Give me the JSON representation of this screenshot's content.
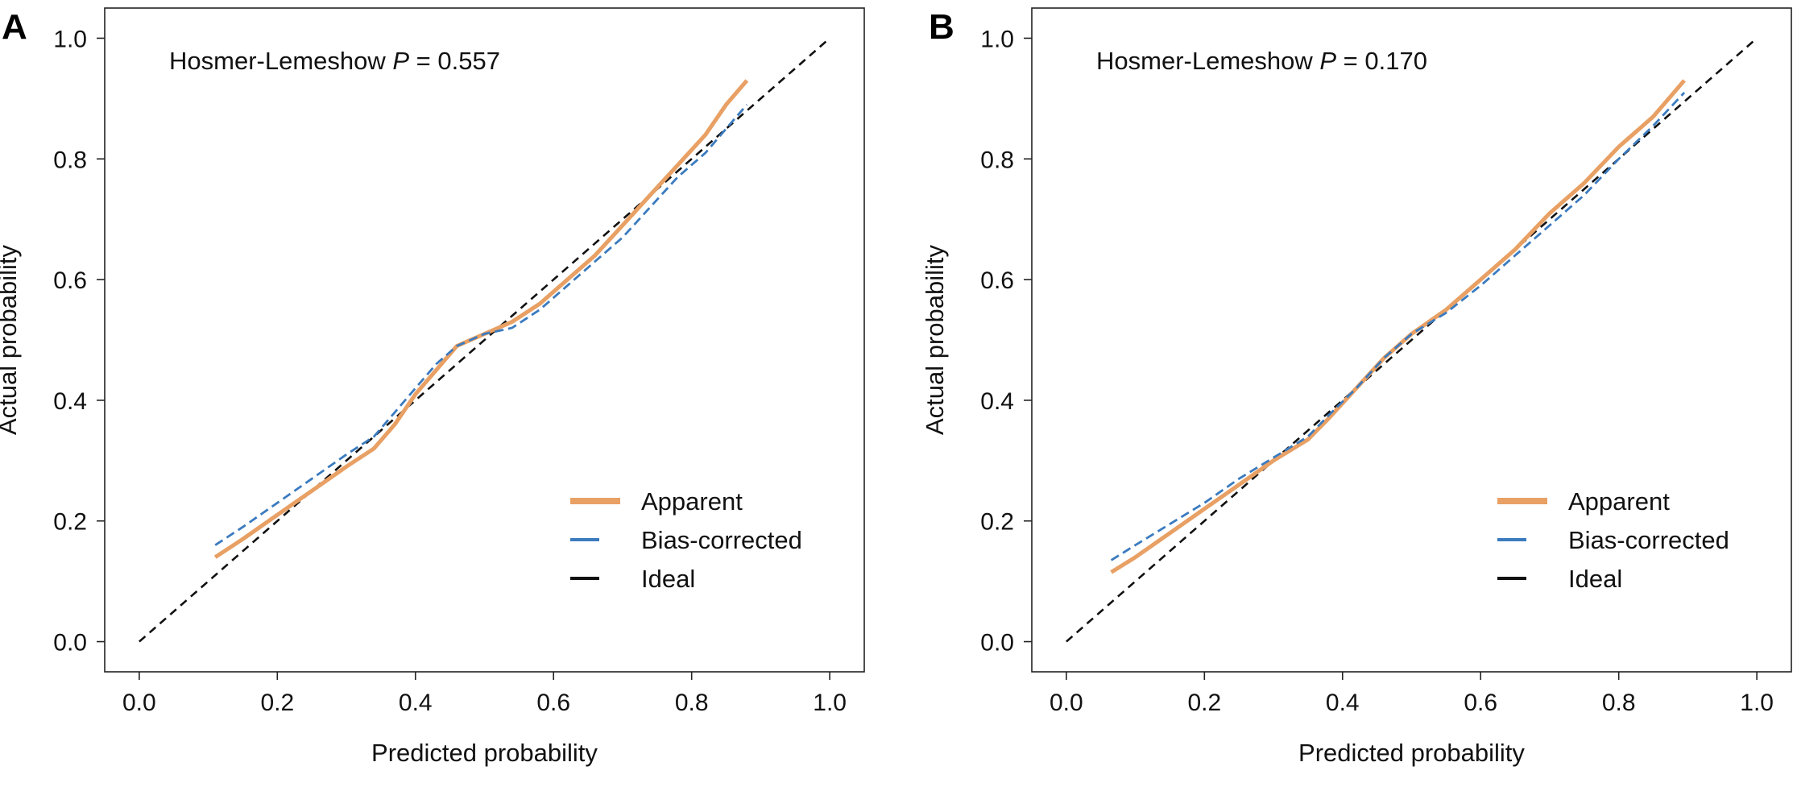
{
  "chart_data": [
    {
      "type": "line",
      "panel_label": "A",
      "annotation": {
        "prefix": "Hosmer-Lemeshow ",
        "italic": "P",
        "suffix": " = 0.557"
      },
      "xlabel": "Predicted probability",
      "ylabel": "Actual probability",
      "xlim": [
        -0.05,
        1.05
      ],
      "ylim": [
        -0.05,
        1.05
      ],
      "xticks": [
        "0.0",
        "0.2",
        "0.4",
        "0.6",
        "0.8",
        "1.0"
      ],
      "yticks": [
        "0.0",
        "0.2",
        "0.4",
        "0.6",
        "0.8",
        "1.0"
      ],
      "grid": false,
      "legend_position": "bottom-right",
      "series": [
        {
          "name": "Apparent",
          "color": "#E8A064",
          "style": "solid",
          "x": [
            0.11,
            0.15,
            0.2,
            0.25,
            0.3,
            0.34,
            0.37,
            0.4,
            0.43,
            0.46,
            0.5,
            0.54,
            0.58,
            0.62,
            0.66,
            0.7,
            0.74,
            0.78,
            0.82,
            0.85,
            0.88
          ],
          "y": [
            0.14,
            0.17,
            0.21,
            0.25,
            0.29,
            0.32,
            0.36,
            0.41,
            0.45,
            0.49,
            0.51,
            0.53,
            0.56,
            0.6,
            0.64,
            0.69,
            0.74,
            0.79,
            0.84,
            0.89,
            0.93
          ]
        },
        {
          "name": "Bias-corrected",
          "color": "#3B7BBF",
          "style": "dashed",
          "x": [
            0.11,
            0.15,
            0.2,
            0.25,
            0.3,
            0.34,
            0.37,
            0.4,
            0.43,
            0.46,
            0.5,
            0.54,
            0.58,
            0.62,
            0.66,
            0.7,
            0.74,
            0.78,
            0.82,
            0.85,
            0.88
          ],
          "y": [
            0.16,
            0.19,
            0.23,
            0.27,
            0.31,
            0.34,
            0.38,
            0.42,
            0.46,
            0.49,
            0.51,
            0.52,
            0.55,
            0.59,
            0.63,
            0.67,
            0.72,
            0.77,
            0.81,
            0.85,
            0.89
          ]
        },
        {
          "name": "Ideal",
          "color": "#111111",
          "style": "dashed",
          "x": [
            0,
            1
          ],
          "y": [
            0,
            1
          ]
        }
      ]
    },
    {
      "type": "line",
      "panel_label": "B",
      "annotation": {
        "prefix": "Hosmer-Lemeshow ",
        "italic": "P",
        "suffix": " = 0.170"
      },
      "xlabel": "Predicted probability",
      "ylabel": "Actual probability",
      "xlim": [
        -0.05,
        1.05
      ],
      "ylim": [
        -0.05,
        1.05
      ],
      "xticks": [
        "0.0",
        "0.2",
        "0.4",
        "0.6",
        "0.8",
        "1.0"
      ],
      "yticks": [
        "0.0",
        "0.2",
        "0.4",
        "0.6",
        "0.8",
        "1.0"
      ],
      "grid": false,
      "legend_position": "bottom-right",
      "series": [
        {
          "name": "Apparent",
          "color": "#E8A064",
          "style": "solid",
          "x": [
            0.065,
            0.1,
            0.15,
            0.2,
            0.25,
            0.3,
            0.35,
            0.38,
            0.42,
            0.46,
            0.5,
            0.55,
            0.6,
            0.65,
            0.7,
            0.75,
            0.8,
            0.85,
            0.895
          ],
          "y": [
            0.115,
            0.14,
            0.18,
            0.22,
            0.26,
            0.3,
            0.335,
            0.37,
            0.42,
            0.47,
            0.51,
            0.55,
            0.6,
            0.65,
            0.71,
            0.76,
            0.82,
            0.87,
            0.93
          ]
        },
        {
          "name": "Bias-corrected",
          "color": "#3B7BBF",
          "style": "dashed",
          "x": [
            0.065,
            0.1,
            0.15,
            0.2,
            0.25,
            0.3,
            0.35,
            0.38,
            0.42,
            0.46,
            0.5,
            0.55,
            0.6,
            0.65,
            0.7,
            0.75,
            0.8,
            0.85,
            0.895
          ],
          "y": [
            0.135,
            0.16,
            0.195,
            0.23,
            0.27,
            0.305,
            0.34,
            0.375,
            0.42,
            0.47,
            0.51,
            0.545,
            0.59,
            0.64,
            0.69,
            0.74,
            0.8,
            0.855,
            0.91
          ]
        },
        {
          "name": "Ideal",
          "color": "#111111",
          "style": "dashed",
          "x": [
            0,
            1
          ],
          "y": [
            0,
            1
          ]
        }
      ]
    }
  ]
}
